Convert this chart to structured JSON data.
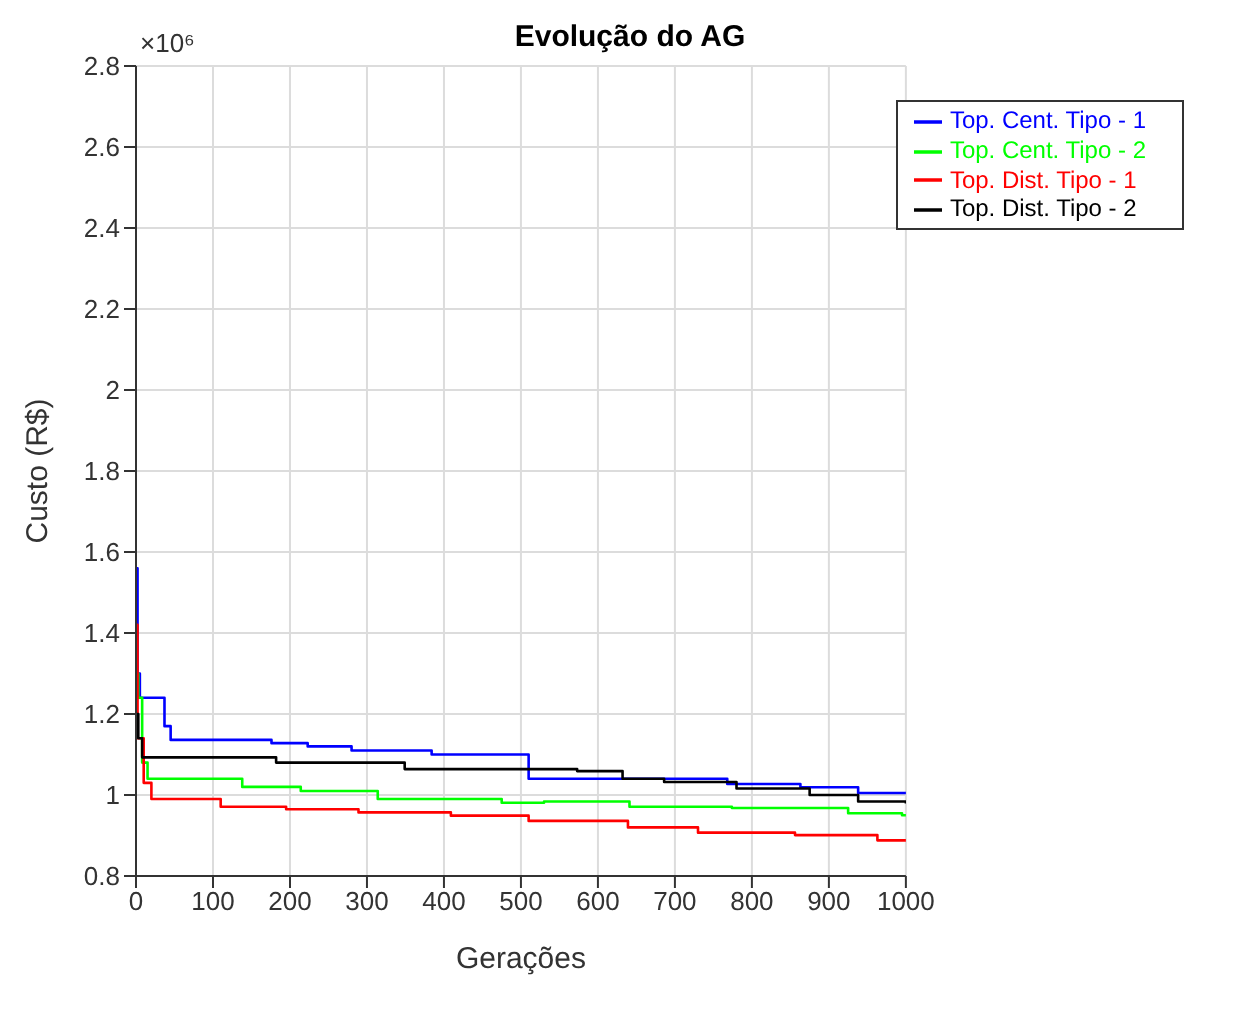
{
  "chart_data": {
    "type": "step",
    "title": "Evolução do AG",
    "xlabel": "Gerações",
    "ylabel": "Custo (R$)",
    "annotations": [
      "×10⁶"
    ],
    "xlim": [
      0,
      1000
    ],
    "xticks": [
      0,
      100,
      200,
      300,
      400,
      500,
      600,
      700,
      800,
      900,
      1000
    ],
    "ylim": [
      0.8,
      2.8
    ],
    "yticks": [
      0.8,
      1,
      1.2,
      1.4,
      1.6,
      1.8,
      2,
      2.2,
      2.4,
      2.6,
      2.8
    ],
    "grid": true,
    "legend": "top right",
    "line_style": "solid",
    "series": [
      {
        "name": "Top. Cent. Tipo -  1",
        "color": "#0000ff",
        "x": [
          0,
          2,
          5,
          37,
          45,
          176,
          223,
          280,
          384,
          510,
          768,
          863,
          938,
          1000
        ],
        "values": [
          1.56,
          1.3,
          1.24,
          1.17,
          1.136,
          1.128,
          1.12,
          1.11,
          1.1,
          1.04,
          1.027,
          1.019,
          1.005,
          1.005
        ]
      },
      {
        "name": "Top. Cent. Tipo -  2",
        "color": "#00ff00",
        "x": [
          0,
          3,
          8,
          15,
          138,
          214,
          314,
          475,
          530,
          641,
          774,
          925,
          995,
          1000
        ],
        "values": [
          1.3,
          1.24,
          1.08,
          1.04,
          1.02,
          1.01,
          0.99,
          0.981,
          0.984,
          0.971,
          0.968,
          0.955,
          0.95,
          0.95
        ]
      },
      {
        "name": "Top. Dist. Tipo -  1",
        "color": "#ff0000",
        "x": [
          0,
          2,
          10,
          20,
          110,
          195,
          289,
          409,
          510,
          639,
          730,
          856,
          963,
          1000
        ],
        "values": [
          1.42,
          1.14,
          1.03,
          0.99,
          0.971,
          0.965,
          0.957,
          0.949,
          0.936,
          0.92,
          0.907,
          0.901,
          0.888,
          0.888
        ]
      },
      {
        "name": "Top. Dist. Tipo -  2",
        "color": "#000000",
        "x": [
          0,
          3,
          8,
          182,
          349,
          573,
          632,
          686,
          780,
          875,
          938,
          1000
        ],
        "values": [
          1.2,
          1.14,
          1.093,
          1.08,
          1.064,
          1.059,
          1.04,
          1.032,
          1.016,
          1,
          0.984,
          0.979
        ]
      }
    ]
  }
}
